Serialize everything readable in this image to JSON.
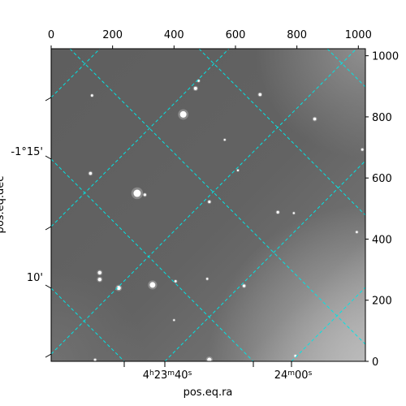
{
  "chart_data": {
    "type": "image",
    "xlabel": "pos.eq.ra",
    "ylabel": "pos.eq.dec",
    "pixel_axes": {
      "x": {
        "range": [
          0,
          1023
        ],
        "ticks": [
          0,
          200,
          400,
          600,
          800,
          1000
        ],
        "tick_labels": [
          "0",
          "200",
          "400",
          "600",
          "800",
          "1000"
        ],
        "position": "top"
      },
      "y": {
        "range": [
          0,
          1023
        ],
        "ticks": [
          0,
          200,
          400,
          600,
          800,
          1000
        ],
        "tick_labels": [
          "0",
          "200",
          "400",
          "600",
          "800",
          "1000"
        ],
        "position": "right"
      }
    },
    "world_axes": {
      "ra_tick_labels": [
        "4h23m40s",
        "24m00s"
      ],
      "dec_tick_labels": [
        "-1°15'",
        "10'"
      ]
    },
    "grid": true,
    "grid_color": "#00e5e5",
    "image_colormap": "gray",
    "stars": [
      {
        "x": 430,
        "y": 808,
        "r": 4.0
      },
      {
        "x": 280,
        "y": 550,
        "r": 4.5
      },
      {
        "x": 330,
        "y": 250,
        "r": 3.5
      },
      {
        "x": 220,
        "y": 240,
        "r": 2.5
      },
      {
        "x": 158,
        "y": 290,
        "r": 2.2
      },
      {
        "x": 158,
        "y": 268,
        "r": 2.2
      },
      {
        "x": 470,
        "y": 893,
        "r": 2.0
      },
      {
        "x": 680,
        "y": 873,
        "r": 1.8
      },
      {
        "x": 858,
        "y": 793,
        "r": 1.8
      },
      {
        "x": 128,
        "y": 615,
        "r": 1.8
      },
      {
        "x": 515,
        "y": 522,
        "r": 1.6
      },
      {
        "x": 738,
        "y": 488,
        "r": 1.6
      },
      {
        "x": 628,
        "y": 247,
        "r": 1.7
      },
      {
        "x": 405,
        "y": 262,
        "r": 1.4
      },
      {
        "x": 515,
        "y": 5,
        "r": 2.6
      },
      {
        "x": 305,
        "y": 545,
        "r": 1.6
      },
      {
        "x": 133,
        "y": 870,
        "r": 1.4
      },
      {
        "x": 1013,
        "y": 693,
        "r": 1.4
      },
      {
        "x": 995,
        "y": 423,
        "r": 1.3
      },
      {
        "x": 480,
        "y": 918,
        "r": 1.4
      },
      {
        "x": 508,
        "y": 270,
        "r": 1.3
      },
      {
        "x": 790,
        "y": 485,
        "r": 1.2
      },
      {
        "x": 565,
        "y": 725,
        "r": 1.2
      },
      {
        "x": 608,
        "y": 625,
        "r": 1.2
      },
      {
        "x": 400,
        "y": 135,
        "r": 1.1
      },
      {
        "x": 143,
        "y": 5,
        "r": 1.4
      },
      {
        "x": 795,
        "y": 18,
        "r": 1.3
      }
    ]
  }
}
